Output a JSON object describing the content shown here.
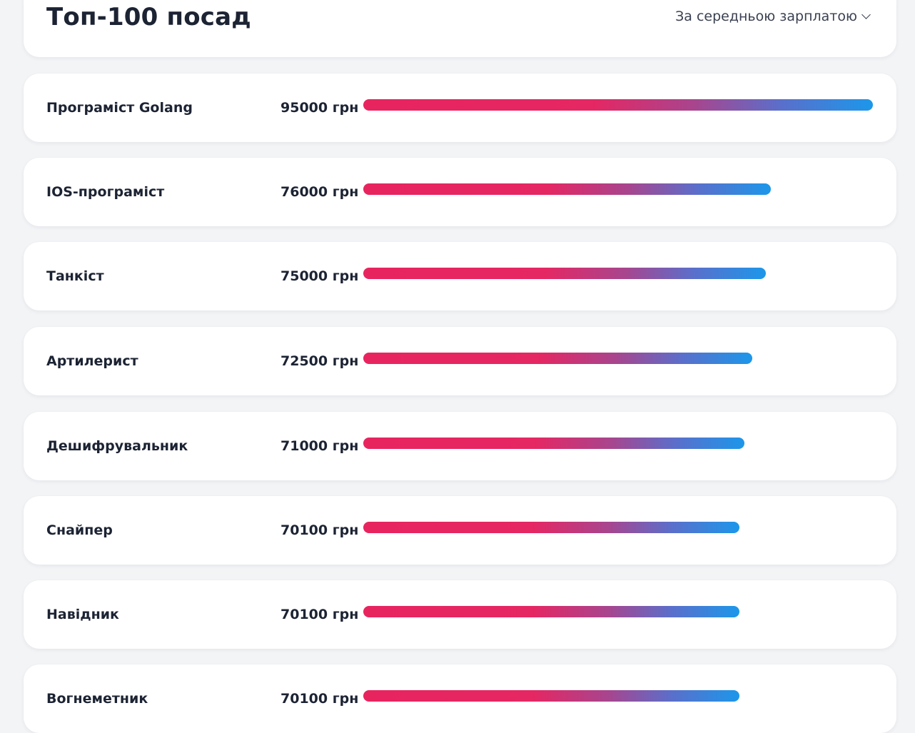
{
  "header": {
    "title": "Топ-100 посад",
    "sort_label": "За середньою зарплатою"
  },
  "colors": {
    "bar_start": "#e8245f",
    "bar_mid": "#a8458e",
    "bar_end": "#1c97ea",
    "card_bg": "#ffffff",
    "page_bg": "#f3f4f6"
  },
  "jobs": [
    {
      "title": "Програміст Golang",
      "salary_label": "95000 грн",
      "salary": 95000
    },
    {
      "title": "IOS-програміст",
      "salary_label": "76000 грн",
      "salary": 76000
    },
    {
      "title": "Танкіст",
      "salary_label": "75000 грн",
      "salary": 75000
    },
    {
      "title": "Артилерист",
      "salary_label": "72500 грн",
      "salary": 72500
    },
    {
      "title": "Дешифрувальник",
      "salary_label": "71000 грн",
      "salary": 71000
    },
    {
      "title": "Снайпер",
      "salary_label": "70100 грн",
      "salary": 70100
    },
    {
      "title": "Навідник",
      "salary_label": "70100 грн",
      "salary": 70100
    },
    {
      "title": "Вогнеметник",
      "salary_label": "70100 грн",
      "salary": 70100
    }
  ]
}
